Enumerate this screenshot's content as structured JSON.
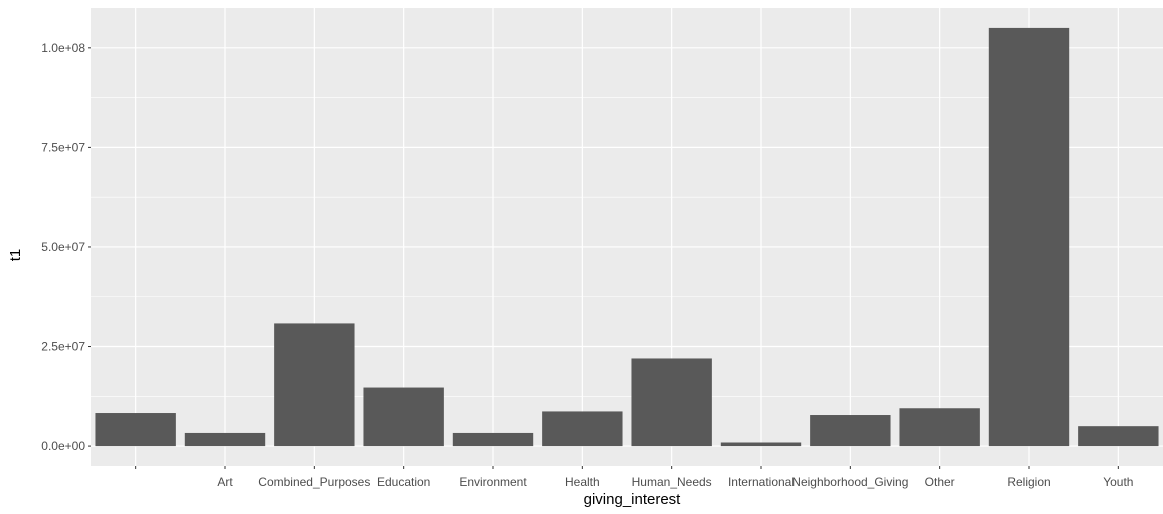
{
  "chart_data": {
    "type": "bar",
    "xlabel": "giving_interest",
    "ylabel": "t1",
    "ylim": [
      -5000000,
      110000000
    ],
    "yticks": [
      0,
      25000000,
      50000000,
      75000000,
      100000000
    ],
    "ytick_labels": [
      "0.0e+00",
      "2.5e+07",
      "5.0e+07",
      "7.5e+07",
      "1.0e+08"
    ],
    "categories": [
      "",
      "Art",
      "Combined_Purposes",
      "Education",
      "Environment",
      "Health",
      "Human_Needs",
      "International",
      "Neighborhood_Giving",
      "Other",
      "Religion",
      "Youth"
    ],
    "values": [
      8300000,
      3300000,
      30800000,
      14700000,
      3300000,
      8700000,
      22000000,
      900000,
      7800000,
      9500000,
      105000000,
      5000000
    ],
    "grid": true,
    "colors": {
      "panel": "#ebebeb",
      "grid": "#ffffff",
      "bar": "#595959",
      "tick_text": "#4d4d4d",
      "axis_title": "#000000"
    }
  }
}
